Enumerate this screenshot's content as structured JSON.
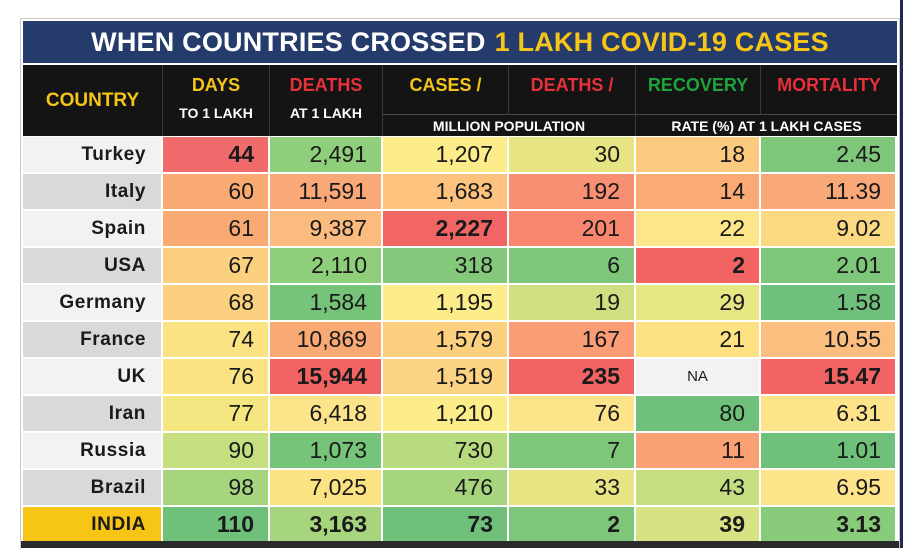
{
  "title": {
    "prefix": "WHEN COUNTRIES CROSSED",
    "highlight": "1 LAKH COVID-19 CASES"
  },
  "headers": {
    "country": "COUNTRY",
    "days": "DAYS",
    "days_sub": "TO 1 LAKH",
    "deaths": "DEATHS",
    "deaths_sub": "AT 1 LAKH",
    "cases_pm": "CASES /",
    "deaths_pm": "DEATHS /",
    "per_million_sub": "MILLION POPULATION",
    "recovery": "RECOVERY",
    "mortality": "MORTALITY",
    "rate_sub": "RATE (%) AT 1 LAKH CASES"
  },
  "colors": {
    "header_bg": "#141414",
    "title_bg": "#243b6b",
    "highlight": "#f7c515",
    "red": "#e8303a",
    "green": "#1fa33a"
  },
  "chart_data": {
    "type": "table",
    "title": "WHEN COUNTRIES CROSSED 1 LAKH COVID-19 CASES",
    "columns": [
      "COUNTRY",
      "DAYS TO 1 LAKH",
      "DEATHS AT 1 LAKH",
      "CASES / MILLION POPULATION",
      "DEATHS / MILLION POPULATION",
      "RECOVERY RATE (%) AT 1 LAKH CASES",
      "MORTALITY RATE (%) AT 1 LAKH CASES"
    ],
    "rows": [
      {
        "country": "Turkey",
        "days": "44",
        "deaths": "2,491",
        "cases_pm": "1,207",
        "deaths_pm": "30",
        "recovery": "18",
        "mortality": "2.45"
      },
      {
        "country": "Italy",
        "days": "60",
        "deaths": "11,591",
        "cases_pm": "1,683",
        "deaths_pm": "192",
        "recovery": "14",
        "mortality": "11.39"
      },
      {
        "country": "Spain",
        "days": "61",
        "deaths": "9,387",
        "cases_pm": "2,227",
        "deaths_pm": "201",
        "recovery": "22",
        "mortality": "9.02"
      },
      {
        "country": "USA",
        "days": "67",
        "deaths": "2,110",
        "cases_pm": "318",
        "deaths_pm": "6",
        "recovery": "2",
        "mortality": "2.01"
      },
      {
        "country": "Germany",
        "days": "68",
        "deaths": "1,584",
        "cases_pm": "1,195",
        "deaths_pm": "19",
        "recovery": "29",
        "mortality": "1.58"
      },
      {
        "country": "France",
        "days": "74",
        "deaths": "10,869",
        "cases_pm": "1,579",
        "deaths_pm": "167",
        "recovery": "21",
        "mortality": "10.55"
      },
      {
        "country": "UK",
        "days": "76",
        "deaths": "15,944",
        "cases_pm": "1,519",
        "deaths_pm": "235",
        "recovery": "NA",
        "mortality": "15.47"
      },
      {
        "country": "Iran",
        "days": "77",
        "deaths": "6,418",
        "cases_pm": "1,210",
        "deaths_pm": "76",
        "recovery": "80",
        "mortality": "6.31"
      },
      {
        "country": "Russia",
        "days": "90",
        "deaths": "1,073",
        "cases_pm": "730",
        "deaths_pm": "7",
        "recovery": "11",
        "mortality": "1.01"
      },
      {
        "country": "Brazil",
        "days": "98",
        "deaths": "7,025",
        "cases_pm": "476",
        "deaths_pm": "33",
        "recovery": "43",
        "mortality": "6.95"
      },
      {
        "country": "INDIA",
        "days": "110",
        "deaths": "3,163",
        "cases_pm": "73",
        "deaths_pm": "2",
        "recovery": "39",
        "mortality": "3.13"
      }
    ],
    "cell_colors": {
      "days": [
        "#f06b6b",
        "#f9aa72",
        "#f9aa72",
        "#fbd07f",
        "#fbd07f",
        "#fbe383",
        "#fbe383",
        "#f4e680",
        "#c5df80",
        "#a7d57d",
        "#6fc07a"
      ],
      "deaths": [
        "#8fcf7b",
        "#f9a977",
        "#fbbb7e",
        "#8fcf7b",
        "#76c37a",
        "#f9aa74",
        "#f26363",
        "#fde38a",
        "#76c37a",
        "#fbe383",
        "#a6d57d"
      ],
      "cases_pm": [
        "#fdec8a",
        "#fcc27e",
        "#f26565",
        "#84c97b",
        "#fdec8a",
        "#fcd07f",
        "#fcd383",
        "#fdec8a",
        "#b8db7f",
        "#a6d57d",
        "#6fc07a"
      ],
      "deaths_pm": [
        "#e6e483",
        "#f98f72",
        "#f98770",
        "#7ec67a",
        "#cfe081",
        "#fa9c74",
        "#f26363",
        "#fde38a",
        "#7ec67a",
        "#e6e483",
        "#7ec67a"
      ],
      "recovery": [
        "#fbca7e",
        "#fbaa76",
        "#fde68a",
        "#f26363",
        "#e7e684",
        "#fde182",
        "#f2f2f2",
        "#6fc07a",
        "#f9a174",
        "#c4de81",
        "#d6e283"
      ],
      "mortality": [
        "#7ec67a",
        "#f9a977",
        "#fbd983",
        "#7ec67a",
        "#6fc07a",
        "#fbbe7e",
        "#f26363",
        "#fde38a",
        "#6fc07a",
        "#fde38a",
        "#87cb7b"
      ],
      "name": [
        "#f2f2f2",
        "#d9d9d9",
        "#f2f2f2",
        "#d9d9d9",
        "#f2f2f2",
        "#d9d9d9",
        "#f2f2f2",
        "#d9d9d9",
        "#f2f2f2",
        "#d9d9d9",
        "#f7c515"
      ]
    },
    "bold_cells": [
      {
        "row": 0,
        "col": "days"
      },
      {
        "row": 2,
        "col": "cases_pm"
      },
      {
        "row": 3,
        "col": "recovery"
      },
      {
        "row": 6,
        "col": "deaths"
      },
      {
        "row": 6,
        "col": "deaths_pm"
      },
      {
        "row": 6,
        "col": "mortality"
      },
      {
        "row": 10,
        "col": "all"
      }
    ]
  }
}
